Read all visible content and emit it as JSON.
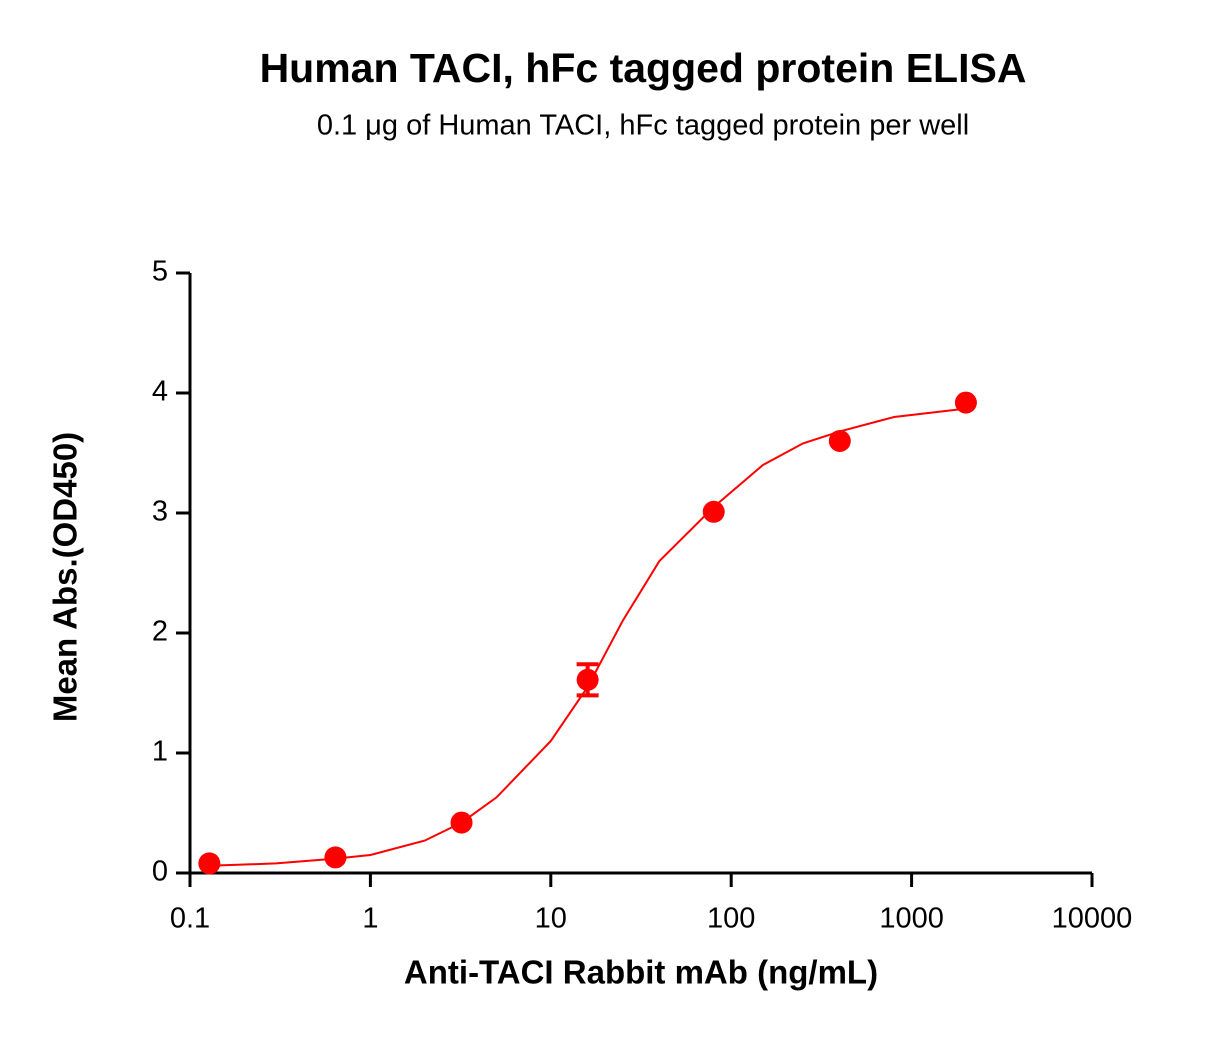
{
  "chart_data": {
    "type": "scatter",
    "title": "Human TACI, hFc tagged protein ELISA",
    "subtitle": "0.1 μg of Human TACI, hFc tagged protein per well",
    "x_label": "Anti-TACI Rabbit mAb (ng/mL)",
    "y_label": "Mean Abs.(OD450)",
    "x_scale": "log",
    "xlim": [
      0.1,
      10000
    ],
    "xticks": [
      0.1,
      1,
      10,
      100,
      1000,
      10000
    ],
    "ylim": [
      0,
      5
    ],
    "yticks": [
      0,
      1,
      2,
      3,
      4,
      5
    ],
    "grid": false,
    "series": [
      {
        "color": "#ff0000",
        "x": [
          0.128,
          0.64,
          3.2,
          16,
          80,
          400,
          2000
        ],
        "values": [
          0.08,
          0.13,
          0.42,
          1.61,
          3.01,
          3.6,
          3.92
        ],
        "errors": [
          null,
          null,
          null,
          0.13,
          null,
          null,
          null
        ]
      }
    ],
    "fit_curve": {
      "color": "#ff0000",
      "x": [
        0.128,
        0.3,
        0.64,
        1,
        2,
        3.2,
        5,
        10,
        16,
        25,
        40,
        80,
        150,
        250,
        400,
        800,
        2000
      ],
      "values": [
        0.06,
        0.08,
        0.12,
        0.15,
        0.27,
        0.42,
        0.63,
        1.1,
        1.55,
        2.1,
        2.6,
        3.05,
        3.4,
        3.58,
        3.68,
        3.8,
        3.87
      ]
    }
  }
}
